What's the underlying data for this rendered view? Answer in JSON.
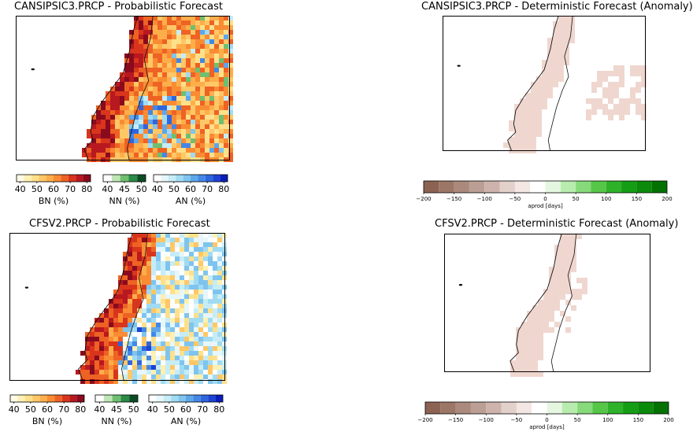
{
  "panels": [
    {
      "title": "CANSIPSIC3.PRCP - Probabilistic Forecast",
      "type": "probabilistic",
      "seed": 11
    },
    {
      "title": "CANSIPSIC3.PRCP - Deterministic Forecast (Anomaly)",
      "type": "deterministic",
      "seed": 12
    },
    {
      "title": "CFSV2.PRCP - Probabilistic Forecast",
      "type": "probabilistic",
      "seed": 21
    },
    {
      "title": "CFSV2.PRCP - Deterministic Forecast (Anomaly)",
      "type": "deterministic",
      "seed": 22
    }
  ],
  "prob_legends": [
    {
      "name": "BN (%)",
      "ticks": [
        "40",
        "50",
        "60",
        "70",
        "80"
      ],
      "colors": [
        "#fffbe6",
        "#fff0b3",
        "#ffe08a",
        "#ffc766",
        "#fdae4b",
        "#f98c33",
        "#ee6224",
        "#d8351c",
        "#b8181f",
        "#8a0a1e"
      ]
    },
    {
      "name": "NN (%)",
      "ticks": [
        "40",
        "45",
        "50"
      ],
      "colors": [
        "#ffffff",
        "#bfe5b5",
        "#6fbf70",
        "#2b8a46",
        "#0b4d23"
      ]
    },
    {
      "name": "AN (%)",
      "ticks": [
        "40",
        "50",
        "60",
        "70",
        "80"
      ],
      "colors": [
        "#ffffff",
        "#e6f6fb",
        "#c6ecf7",
        "#a1dbf2",
        "#7fc4ee",
        "#5ea6ea",
        "#4487e6",
        "#2f66de",
        "#1c43d2",
        "#0a1ebc"
      ]
    }
  ],
  "anomaly_legend": {
    "ticks": [
      "−200",
      "−150",
      "−100",
      "−50",
      "0",
      "50",
      "100",
      "150",
      "200"
    ],
    "label": "aprod [days]",
    "colors": [
      "#8c6353",
      "#9c7666",
      "#ab8a7d",
      "#bb9f95",
      "#cdb3ac",
      "#e2d0ca",
      "#f4e6e2",
      "#ffffff",
      "#e5f7e0",
      "#b8ecae",
      "#86da7a",
      "#56c649",
      "#2db22a",
      "#159d16",
      "#0b8a0b",
      "#037203"
    ]
  },
  "land_colors": {
    "anomaly_fill": "#efd7cf",
    "coast": "#111111"
  }
}
